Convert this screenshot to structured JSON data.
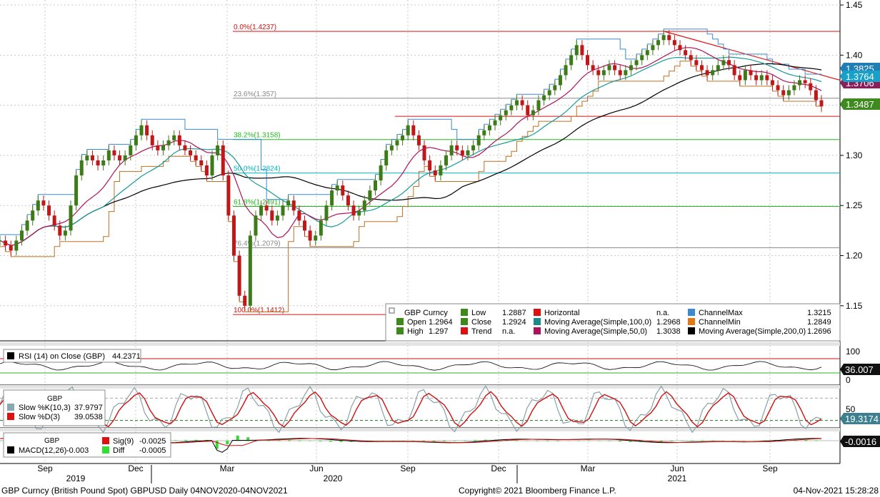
{
  "chart_data": {
    "type": "line",
    "title": "GBP Curncy (British Pound Spot) GBPUSD",
    "x_ticks": [
      "Sep",
      "Dec",
      "Mar",
      "Jun",
      "Sep",
      "Dec",
      "Mar",
      "Jun",
      "Sep"
    ],
    "years": [
      "2019",
      "2020",
      "2021"
    ],
    "y_ticks": [
      "1.45",
      "1.40",
      "1.35",
      "1.30",
      "1.25",
      "1.20",
      "1.15"
    ],
    "ylim": [
      1.115,
      1.455
    ],
    "price_badges": [
      {
        "text": "1.3825",
        "color": "#1f7fb4"
      },
      {
        "text": "1.3706",
        "color": "#8b1f5c"
      },
      {
        "text": "1.3764",
        "color": "#17a0c8"
      },
      {
        "text": "1.3487",
        "color": "#3f8a1f"
      }
    ],
    "fibonacci": [
      {
        "label": "0.0%(1.4237)",
        "value": 1.4237,
        "color": "#d01010"
      },
      {
        "label": "23.6%(1.357)",
        "value": 1.357,
        "color": "#888888"
      },
      {
        "label": "38.2%(1.3158)",
        "value": 1.3158,
        "color": "#22bb22"
      },
      {
        "label": "50.0%(1.2824)",
        "value": 1.2824,
        "color": "#00b8c8"
      },
      {
        "label": "61.8%(1.2491)",
        "value": 1.2491,
        "color": "#22bb22"
      },
      {
        "label": "76.4%(1.2079)",
        "value": 1.2079,
        "color": "#888888"
      },
      {
        "label": "100.0%(1.1412)",
        "value": 1.1412,
        "color": "#d01010"
      }
    ],
    "horizontal_line": 1.339,
    "legend": {
      "header": "GBP Curncy",
      "items": [
        {
          "label": "Open",
          "value": "1.2964",
          "color": "#3d8a1a"
        },
        {
          "label": "High",
          "value": "1.297",
          "color": "#3d8a1a"
        },
        {
          "label": "Low",
          "value": "1.2887",
          "color": "#3d8a1a"
        },
        {
          "label": "Close",
          "value": "1.2924",
          "color": "#3d8a1a"
        },
        {
          "label": "Trend",
          "value": "n.a.",
          "color": "#e01010"
        },
        {
          "label": "Horizontal",
          "value": "n.a.",
          "color": "#e01010"
        },
        {
          "label": "Moving Average(Simple,100,0)",
          "value": "1.2968",
          "color": "#1a8a8a"
        },
        {
          "label": "Moving Average(Simple,50,0)",
          "value": "1.3038",
          "color": "#b0105a"
        },
        {
          "label": "ChannelMax",
          "value": "1.3215",
          "color": "#3a8ad0"
        },
        {
          "label": "ChannelMin",
          "value": "1.2849",
          "color": "#e07818"
        },
        {
          "label": "Moving Average(Simple,200,0)",
          "value": "1.2696",
          "color": "#000000"
        }
      ]
    },
    "rsi": {
      "label": "RSI (14)  on Close (GBP)",
      "value": "44.2371",
      "ticks": [
        "100",
        "0"
      ],
      "badge": "36.007",
      "levels": [
        70,
        30
      ]
    },
    "stoch": {
      "header": "GBP",
      "k_label": "Slow %K(10,3)",
      "k_value": "37.9797",
      "d_label": "Slow %D(3)",
      "d_value": "39.0538",
      "tick": "50",
      "badge": "19.3174"
    },
    "macd": {
      "header": "GBP",
      "macd_label": "MACD(12,26)",
      "macd_value": "-0.003",
      "sig_label": "Sig(9)",
      "sig_value": "-0.0025",
      "diff_label": "Diff",
      "diff_value": "-0.0005",
      "badge": "-0.0016"
    },
    "closes": [
      1.215,
      1.21,
      1.205,
      1.215,
      1.225,
      1.235,
      1.245,
      1.255,
      1.25,
      1.24,
      1.23,
      1.22,
      1.225,
      1.25,
      1.28,
      1.295,
      1.3,
      1.295,
      1.29,
      1.295,
      1.305,
      1.3,
      1.295,
      1.3,
      1.31,
      1.32,
      1.33,
      1.32,
      1.31,
      1.305,
      1.31,
      1.315,
      1.32,
      1.31,
      1.305,
      1.3,
      1.295,
      1.29,
      1.28,
      1.3,
      1.31,
      1.28,
      1.24,
      1.2,
      1.16,
      1.15,
      1.22,
      1.24,
      1.25,
      1.245,
      1.235,
      1.24,
      1.25,
      1.255,
      1.245,
      1.235,
      1.225,
      1.215,
      1.22,
      1.235,
      1.25,
      1.265,
      1.27,
      1.26,
      1.25,
      1.24,
      1.245,
      1.255,
      1.265,
      1.275,
      1.29,
      1.305,
      1.31,
      1.315,
      1.32,
      1.33,
      1.32,
      1.31,
      1.295,
      1.285,
      1.28,
      1.29,
      1.3,
      1.31,
      1.305,
      1.3,
      1.305,
      1.31,
      1.32,
      1.325,
      1.33,
      1.335,
      1.34,
      1.345,
      1.35,
      1.355,
      1.35,
      1.34,
      1.345,
      1.355,
      1.36,
      1.365,
      1.37,
      1.38,
      1.39,
      1.4,
      1.41,
      1.4,
      1.39,
      1.385,
      1.38,
      1.385,
      1.39,
      1.385,
      1.38,
      1.385,
      1.39,
      1.395,
      1.4,
      1.405,
      1.41,
      1.415,
      1.42,
      1.415,
      1.41,
      1.405,
      1.4,
      1.395,
      1.39,
      1.385,
      1.38,
      1.385,
      1.39,
      1.395,
      1.39,
      1.38,
      1.375,
      1.385,
      1.38,
      1.375,
      1.38,
      1.375,
      1.37,
      1.365,
      1.36,
      1.365,
      1.37,
      1.375,
      1.372,
      1.365,
      1.355,
      1.349
    ]
  },
  "footer": {
    "left": "GBP Curncy (British Pound Spot) GBPUSD  Daily 04NOV2020-04NOV2021",
    "center": "Copyright© 2021 Bloomberg Finance L.P.",
    "right": "04-Nov-2021 15:28:28"
  },
  "colors": {
    "price": "#3d7a18",
    "ma50": "#b0105a",
    "ma100": "#1a9a9a",
    "ma200": "#000000",
    "channel_max": "#3a8ad0",
    "channel_min": "#c07020",
    "trend": "#e01010",
    "rsi": "#000000",
    "stoch_k": "#8aa0a8",
    "stoch_d": "#d01010"
  }
}
